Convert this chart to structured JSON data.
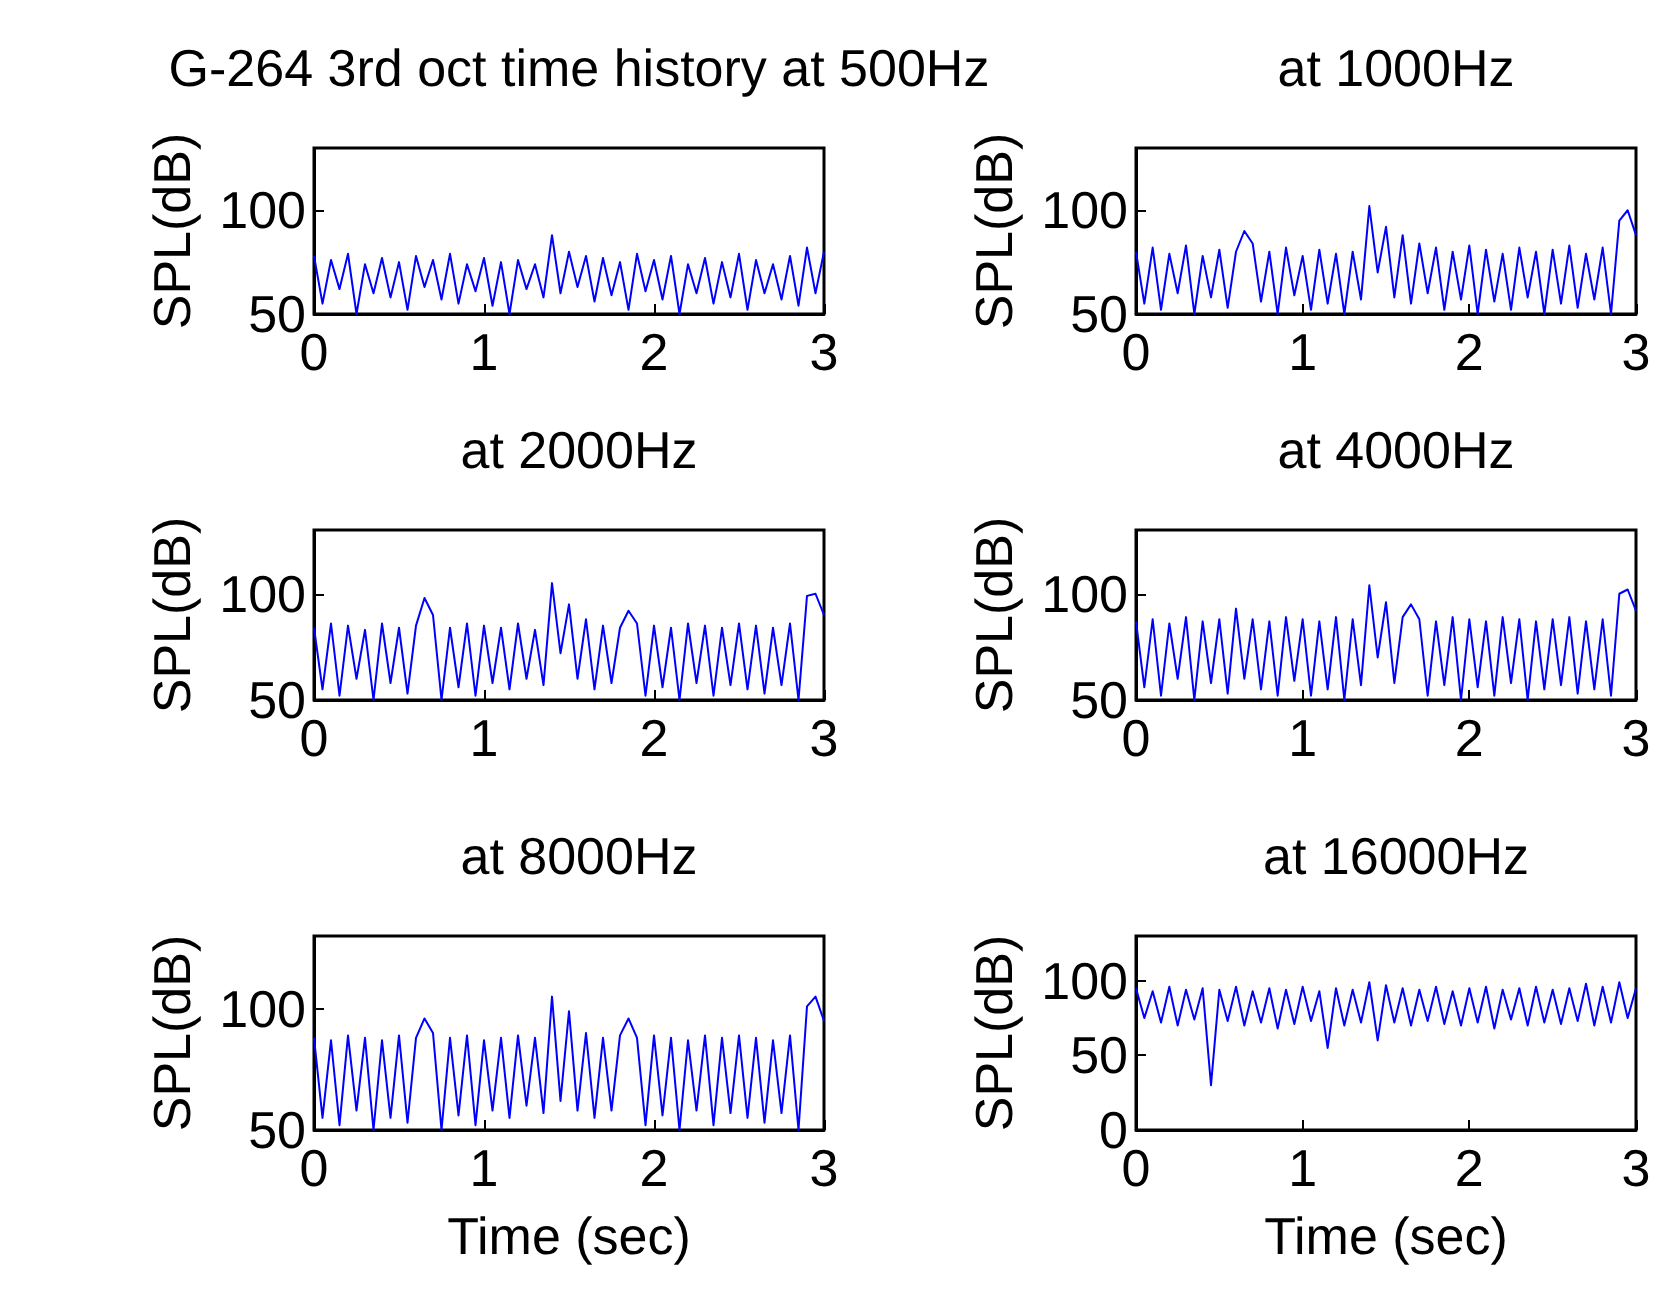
{
  "chart_data": [
    {
      "type": "line",
      "title": "G-264 3rd oct time history at 500Hz",
      "ylabel": "SPL(dB)",
      "xlim": [
        0,
        3
      ],
      "xticks": [
        0,
        1,
        2,
        3
      ],
      "ylim": [
        50,
        130
      ],
      "yticks": [
        50,
        100
      ],
      "x": [
        0,
        0.05,
        0.1,
        0.15,
        0.2,
        0.25,
        0.3,
        0.35,
        0.4,
        0.45,
        0.5,
        0.55,
        0.6,
        0.65,
        0.7,
        0.75,
        0.8,
        0.85,
        0.9,
        0.95,
        1,
        1.05,
        1.1,
        1.15,
        1.2,
        1.25,
        1.3,
        1.35,
        1.4,
        1.45,
        1.5,
        1.55,
        1.6,
        1.65,
        1.7,
        1.75,
        1.8,
        1.85,
        1.9,
        1.95,
        2,
        2.05,
        2.1,
        2.15,
        2.2,
        2.25,
        2.3,
        2.35,
        2.4,
        2.45,
        2.5,
        2.55,
        2.6,
        2.65,
        2.7,
        2.75,
        2.8,
        2.85,
        2.9,
        2.95,
        3
      ],
      "series": [
        {
          "color": "#0000ff",
          "values": [
            78,
            55,
            76,
            62,
            79,
            50,
            74,
            60,
            77,
            58,
            75,
            52,
            78,
            63,
            76,
            57,
            79,
            55,
            74,
            61,
            77,
            54,
            75,
            50,
            76,
            62,
            74,
            58,
            88,
            60,
            80,
            63,
            78,
            56,
            77,
            59,
            75,
            52,
            79,
            61,
            76,
            57,
            78,
            50,
            74,
            60,
            77,
            55,
            75,
            58,
            79,
            52,
            76,
            60,
            74,
            57,
            78,
            54,
            82,
            60,
            80
          ]
        }
      ]
    },
    {
      "type": "line",
      "title": "at 1000Hz",
      "ylabel": "SPL(dB)",
      "xlim": [
        0,
        3
      ],
      "xticks": [
        0,
        1,
        2,
        3
      ],
      "ylim": [
        50,
        130
      ],
      "yticks": [
        50,
        100
      ],
      "x": [
        0,
        0.05,
        0.1,
        0.15,
        0.2,
        0.25,
        0.3,
        0.35,
        0.4,
        0.45,
        0.5,
        0.55,
        0.6,
        0.65,
        0.7,
        0.75,
        0.8,
        0.85,
        0.9,
        0.95,
        1,
        1.05,
        1.1,
        1.15,
        1.2,
        1.25,
        1.3,
        1.35,
        1.4,
        1.45,
        1.5,
        1.55,
        1.6,
        1.65,
        1.7,
        1.75,
        1.8,
        1.85,
        1.9,
        1.95,
        2,
        2.05,
        2.1,
        2.15,
        2.2,
        2.25,
        2.3,
        2.35,
        2.4,
        2.45,
        2.5,
        2.55,
        2.6,
        2.65,
        2.7,
        2.75,
        2.8,
        2.85,
        2.9,
        2.95,
        3
      ],
      "series": [
        {
          "color": "#0000ff",
          "values": [
            80,
            55,
            82,
            52,
            79,
            60,
            83,
            50,
            78,
            58,
            81,
            53,
            80,
            90,
            84,
            56,
            80,
            50,
            82,
            59,
            78,
            52,
            81,
            55,
            79,
            50,
            80,
            57,
            102,
            70,
            92,
            58,
            88,
            55,
            84,
            60,
            82,
            52,
            80,
            57,
            83,
            50,
            81,
            56,
            79,
            52,
            82,
            58,
            80,
            50,
            81,
            55,
            83,
            53,
            79,
            57,
            82,
            50,
            95,
            100,
            88
          ]
        }
      ]
    },
    {
      "type": "line",
      "title": "at 2000Hz",
      "ylabel": "SPL(dB)",
      "xlim": [
        0,
        3
      ],
      "xticks": [
        0,
        1,
        2,
        3
      ],
      "ylim": [
        50,
        130
      ],
      "yticks": [
        50,
        100
      ],
      "x": [
        0,
        0.05,
        0.1,
        0.15,
        0.2,
        0.25,
        0.3,
        0.35,
        0.4,
        0.45,
        0.5,
        0.55,
        0.6,
        0.65,
        0.7,
        0.75,
        0.8,
        0.85,
        0.9,
        0.95,
        1,
        1.05,
        1.1,
        1.15,
        1.2,
        1.25,
        1.3,
        1.35,
        1.4,
        1.45,
        1.5,
        1.55,
        1.6,
        1.65,
        1.7,
        1.75,
        1.8,
        1.85,
        1.9,
        1.95,
        2,
        2.05,
        2.1,
        2.15,
        2.2,
        2.25,
        2.3,
        2.35,
        2.4,
        2.45,
        2.5,
        2.55,
        2.6,
        2.65,
        2.7,
        2.75,
        2.8,
        2.85,
        2.9,
        2.95,
        3
      ],
      "series": [
        {
          "color": "#0000ff",
          "values": [
            84,
            55,
            86,
            52,
            85,
            60,
            83,
            50,
            86,
            58,
            84,
            53,
            85,
            98,
            90,
            50,
            84,
            56,
            86,
            52,
            85,
            58,
            84,
            55,
            86,
            60,
            83,
            57,
            105,
            72,
            95,
            60,
            88,
            55,
            85,
            58,
            84,
            92,
            86,
            52,
            85,
            56,
            84,
            50,
            86,
            58,
            85,
            52,
            84,
            57,
            86,
            55,
            85,
            53,
            84,
            57,
            86,
            50,
            99,
            100,
            90
          ]
        }
      ]
    },
    {
      "type": "line",
      "title": "at 4000Hz",
      "ylabel": "SPL(dB)",
      "xlim": [
        0,
        3
      ],
      "xticks": [
        0,
        1,
        2,
        3
      ],
      "ylim": [
        50,
        130
      ],
      "yticks": [
        50,
        100
      ],
      "x": [
        0,
        0.05,
        0.1,
        0.15,
        0.2,
        0.25,
        0.3,
        0.35,
        0.4,
        0.45,
        0.5,
        0.55,
        0.6,
        0.65,
        0.7,
        0.75,
        0.8,
        0.85,
        0.9,
        0.95,
        1,
        1.05,
        1.1,
        1.15,
        1.2,
        1.25,
        1.3,
        1.35,
        1.4,
        1.45,
        1.5,
        1.55,
        1.6,
        1.65,
        1.7,
        1.75,
        1.8,
        1.85,
        1.9,
        1.95,
        2,
        2.05,
        2.1,
        2.15,
        2.2,
        2.25,
        2.3,
        2.35,
        2.4,
        2.45,
        2.5,
        2.55,
        2.6,
        2.65,
        2.7,
        2.75,
        2.8,
        2.85,
        2.9,
        2.95,
        3
      ],
      "series": [
        {
          "color": "#0000ff",
          "values": [
            87,
            56,
            88,
            52,
            86,
            60,
            89,
            50,
            87,
            58,
            88,
            53,
            93,
            60,
            88,
            55,
            87,
            52,
            89,
            59,
            88,
            52,
            87,
            55,
            89,
            50,
            88,
            57,
            104,
            70,
            96,
            58,
            89,
            95,
            88,
            52,
            87,
            57,
            89,
            50,
            88,
            56,
            87,
            52,
            89,
            58,
            88,
            50,
            87,
            55,
            88,
            57,
            89,
            53,
            87,
            55,
            88,
            52,
            100,
            102,
            92
          ]
        }
      ]
    },
    {
      "type": "line",
      "title": "at 8000Hz",
      "xlabel": "Time (sec)",
      "ylabel": "SPL(dB)",
      "xlim": [
        0,
        3
      ],
      "xticks": [
        0,
        1,
        2,
        3
      ],
      "ylim": [
        50,
        130
      ],
      "yticks": [
        50,
        100
      ],
      "x": [
        0,
        0.05,
        0.1,
        0.15,
        0.2,
        0.25,
        0.3,
        0.35,
        0.4,
        0.45,
        0.5,
        0.55,
        0.6,
        0.65,
        0.7,
        0.75,
        0.8,
        0.85,
        0.9,
        0.95,
        1,
        1.05,
        1.1,
        1.15,
        1.2,
        1.25,
        1.3,
        1.35,
        1.4,
        1.45,
        1.5,
        1.55,
        1.6,
        1.65,
        1.7,
        1.75,
        1.8,
        1.85,
        1.9,
        1.95,
        2,
        2.05,
        2.1,
        2.15,
        2.2,
        2.25,
        2.3,
        2.35,
        2.4,
        2.45,
        2.5,
        2.55,
        2.6,
        2.65,
        2.7,
        2.75,
        2.8,
        2.85,
        2.9,
        2.95,
        3
      ],
      "series": [
        {
          "color": "#0000ff",
          "values": [
            88,
            55,
            87,
            52,
            89,
            58,
            88,
            50,
            87,
            55,
            89,
            53,
            88,
            96,
            90,
            50,
            88,
            56,
            89,
            52,
            87,
            58,
            88,
            55,
            89,
            60,
            88,
            57,
            105,
            62,
            99,
            58,
            90,
            55,
            88,
            58,
            89,
            96,
            88,
            52,
            89,
            56,
            88,
            50,
            87,
            58,
            89,
            52,
            88,
            57,
            89,
            55,
            88,
            53,
            87,
            57,
            89,
            50,
            101,
            105,
            95
          ]
        }
      ]
    },
    {
      "type": "line",
      "title": "at 16000Hz",
      "xlabel": "Time (sec)",
      "ylabel": "SPL(dB)",
      "xlim": [
        0,
        3
      ],
      "xticks": [
        0,
        1,
        2,
        3
      ],
      "ylim": [
        0,
        130
      ],
      "yticks": [
        0,
        50,
        100
      ],
      "x": [
        0,
        0.05,
        0.1,
        0.15,
        0.2,
        0.25,
        0.3,
        0.35,
        0.4,
        0.45,
        0.5,
        0.55,
        0.6,
        0.65,
        0.7,
        0.75,
        0.8,
        0.85,
        0.9,
        0.95,
        1,
        1.05,
        1.1,
        1.15,
        1.2,
        1.25,
        1.3,
        1.35,
        1.4,
        1.45,
        1.5,
        1.55,
        1.6,
        1.65,
        1.7,
        1.75,
        1.8,
        1.85,
        1.9,
        1.95,
        2,
        2.05,
        2.1,
        2.15,
        2.2,
        2.25,
        2.3,
        2.35,
        2.4,
        2.45,
        2.5,
        2.55,
        2.6,
        2.65,
        2.7,
        2.75,
        2.8,
        2.85,
        2.9,
        2.95,
        3
      ],
      "series": [
        {
          "color": "#0000ff",
          "values": [
            95,
            75,
            93,
            72,
            96,
            70,
            94,
            74,
            95,
            30,
            94,
            73,
            96,
            70,
            93,
            72,
            95,
            68,
            94,
            71,
            96,
            73,
            93,
            55,
            95,
            70,
            94,
            72,
            99,
            60,
            97,
            72,
            95,
            70,
            94,
            73,
            96,
            71,
            93,
            70,
            95,
            72,
            96,
            68,
            94,
            74,
            95,
            70,
            96,
            72,
            94,
            71,
            95,
            73,
            98,
            70,
            96,
            72,
            99,
            75,
            95
          ]
        }
      ]
    }
  ]
}
